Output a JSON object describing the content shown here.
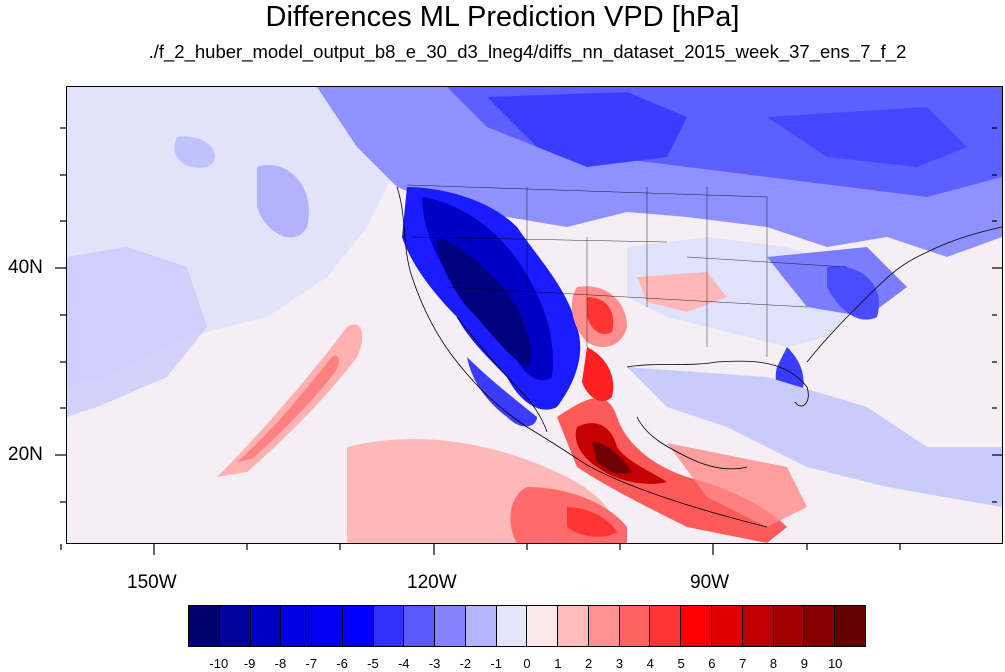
{
  "title": "Differences ML Prediction VPD [hPa]",
  "subtitle": "./f_2_huber_model_output_b8_e_30_d3_lneg4/diffs_nn_dataset_2015_week_37_ens_7_f_2",
  "lat_axis": {
    "labels": [
      "40N",
      "20N"
    ]
  },
  "lon_axis": {
    "labels": [
      "150W",
      "120W",
      "90W"
    ]
  },
  "colorbar": {
    "labels": [
      "-10",
      "-9",
      "-8",
      "-7",
      "-6",
      "-5",
      "-4",
      "-3",
      "-2",
      "-1",
      "0",
      "1",
      "2",
      "3",
      "4",
      "5",
      "6",
      "7",
      "8",
      "9",
      "10"
    ],
    "colors": [
      "#000070",
      "#00009a",
      "#0000c4",
      "#0000e0",
      "#0000f5",
      "#0000ff",
      "#3030ff",
      "#5a5aff",
      "#8484ff",
      "#b4b4ff",
      "#e4e4fa",
      "#fce8ea",
      "#ffbcbc",
      "#ff9292",
      "#ff6464",
      "#ff3434",
      "#ff0000",
      "#e00000",
      "#c00000",
      "#a00000",
      "#840000",
      "#640000"
    ]
  },
  "regions": [
    {
      "name": "north-canada-negative",
      "value": -4
    },
    {
      "name": "western-us-strong-negative",
      "value": -9
    },
    {
      "name": "southeast-us-negative",
      "value": -4
    },
    {
      "name": "eastern-pacific-mild-negative",
      "value": -2
    },
    {
      "name": "central-pacific-positive",
      "value": 3
    },
    {
      "name": "mexico-strong-positive",
      "value": 8
    },
    {
      "name": "southern-plains-positive",
      "value": 5
    },
    {
      "name": "tropical-pacific-positive",
      "value": 4
    }
  ]
}
